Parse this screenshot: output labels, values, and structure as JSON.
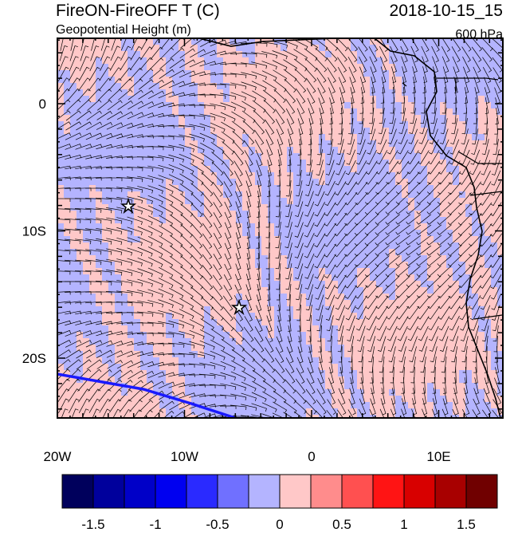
{
  "header": {
    "title": "FireON-FireOFF T (C)",
    "subtitle": "Geopotential Height (m)",
    "date": "2018-10-15_15",
    "level": "600 hPa"
  },
  "map": {
    "lon_labels": [
      "20W",
      "10W",
      "0",
      "10E"
    ],
    "lat_labels": [
      "0",
      "10S",
      "20S"
    ]
  },
  "colorbar": {
    "labels": [
      "-1.5",
      "-1",
      "-0.5",
      "0",
      "0.5",
      "1",
      "1.5"
    ],
    "colors": [
      "#00005c",
      "#00009c",
      "#0000c8",
      "#0000f0",
      "#2a2aff",
      "#7070ff",
      "#b4b4ff",
      "#ffc8c8",
      "#ff8c8c",
      "#ff5050",
      "#ff1414",
      "#d80000",
      "#a80000",
      "#700000"
    ]
  }
}
